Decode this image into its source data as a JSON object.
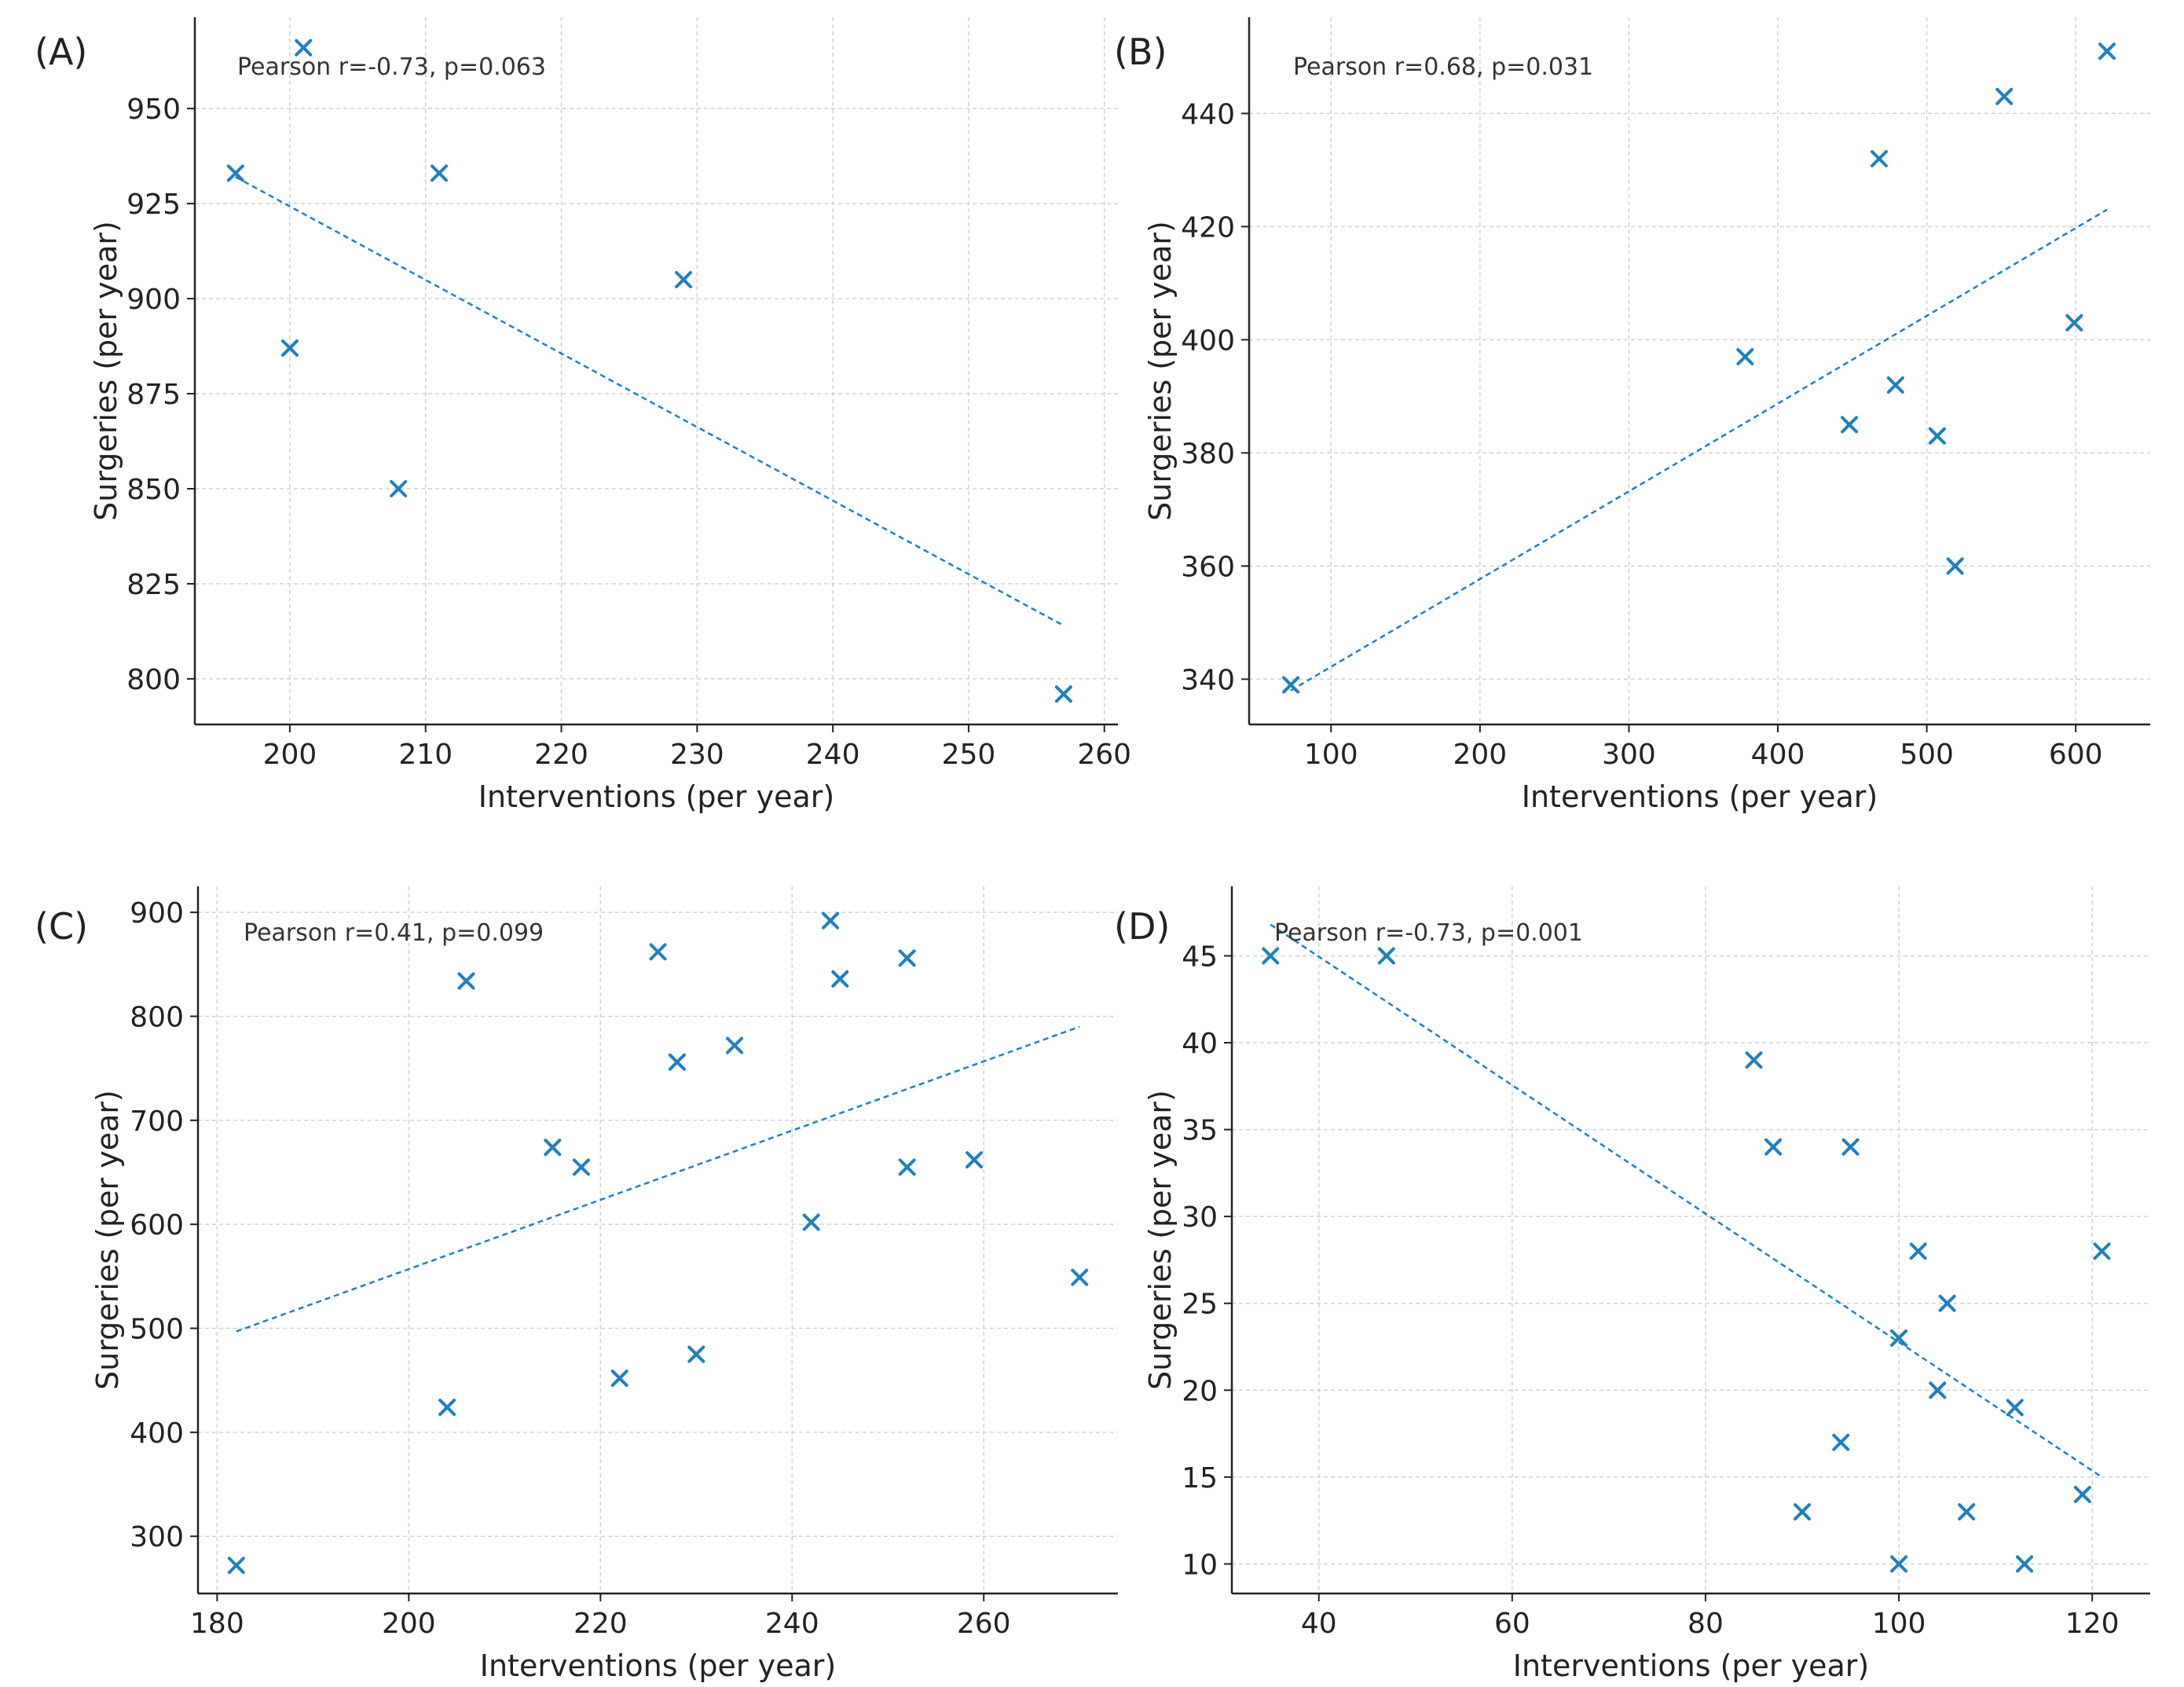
{
  "chart_data": [
    {
      "panel_label": "(A)",
      "type": "scatter",
      "annotation": "Pearson r=-0.73, p=0.063",
      "xlabel": "Interventions (per year)",
      "ylabel": "Surgeries (per year)",
      "xlim": [
        193,
        261
      ],
      "ylim": [
        788,
        974
      ],
      "xticks": [
        200,
        210,
        220,
        230,
        240,
        250,
        260
      ],
      "yticks": [
        800,
        825,
        850,
        875,
        900,
        925,
        950
      ],
      "grid": true,
      "points": [
        {
          "x": 196,
          "y": 933
        },
        {
          "x": 200,
          "y": 887
        },
        {
          "x": 201,
          "y": 966
        },
        {
          "x": 208,
          "y": 850
        },
        {
          "x": 211,
          "y": 933
        },
        {
          "x": 229,
          "y": 905
        },
        {
          "x": 257,
          "y": 796
        }
      ],
      "fit_line": {
        "x": [
          196,
          257
        ],
        "y": [
          932,
          814
        ]
      }
    },
    {
      "panel_label": "(B)",
      "type": "scatter",
      "annotation": "Pearson r=0.68, p=0.031",
      "xlabel": "Interventions (per year)",
      "ylabel": "Surgeries (per year)",
      "xlim": [
        45,
        650
      ],
      "ylim": [
        332,
        457
      ],
      "xticks": [
        100,
        200,
        300,
        400,
        500,
        600
      ],
      "yticks": [
        340,
        360,
        380,
        400,
        420,
        440
      ],
      "grid": true,
      "points": [
        {
          "x": 73,
          "y": 339
        },
        {
          "x": 378,
          "y": 397
        },
        {
          "x": 448,
          "y": 385
        },
        {
          "x": 468,
          "y": 432
        },
        {
          "x": 479,
          "y": 392
        },
        {
          "x": 507,
          "y": 383
        },
        {
          "x": 519,
          "y": 360
        },
        {
          "x": 552,
          "y": 443
        },
        {
          "x": 599,
          "y": 403
        },
        {
          "x": 621,
          "y": 451
        }
      ],
      "fit_line": {
        "x": [
          73,
          621
        ],
        "y": [
          338,
          423
        ]
      }
    },
    {
      "panel_label": "(C)",
      "type": "scatter",
      "annotation": "Pearson r=0.41, p=0.099",
      "xlabel": "Interventions (per year)",
      "ylabel": "Surgeries (per year)",
      "xlim": [
        178,
        274
      ],
      "ylim": [
        245,
        925
      ],
      "xticks": [
        180,
        200,
        220,
        240,
        260
      ],
      "yticks": [
        300,
        400,
        500,
        600,
        700,
        800,
        900
      ],
      "grid": true,
      "points": [
        {
          "x": 182,
          "y": 272
        },
        {
          "x": 204,
          "y": 424
        },
        {
          "x": 206,
          "y": 834
        },
        {
          "x": 215,
          "y": 674
        },
        {
          "x": 218,
          "y": 655
        },
        {
          "x": 222,
          "y": 452
        },
        {
          "x": 226,
          "y": 862
        },
        {
          "x": 228,
          "y": 756
        },
        {
          "x": 230,
          "y": 475
        },
        {
          "x": 234,
          "y": 772
        },
        {
          "x": 242,
          "y": 602
        },
        {
          "x": 244,
          "y": 892
        },
        {
          "x": 245,
          "y": 836
        },
        {
          "x": 252,
          "y": 655
        },
        {
          "x": 252,
          "y": 856
        },
        {
          "x": 259,
          "y": 662
        },
        {
          "x": 270,
          "y": 549
        }
      ],
      "fit_line": {
        "x": [
          182,
          270
        ],
        "y": [
          497,
          790
        ]
      }
    },
    {
      "panel_label": "(D)",
      "type": "scatter",
      "annotation": "Pearson r=-0.73, p=0.001",
      "xlabel": "Interventions (per year)",
      "ylabel": "Surgeries (per year)",
      "xlim": [
        31,
        126
      ],
      "ylim": [
        8.3,
        49
      ],
      "xticks": [
        40,
        60,
        80,
        100,
        120
      ],
      "yticks": [
        10,
        15,
        20,
        25,
        30,
        35,
        40,
        45
      ],
      "grid": true,
      "points": [
        {
          "x": 35,
          "y": 45
        },
        {
          "x": 47,
          "y": 45
        },
        {
          "x": 85,
          "y": 39
        },
        {
          "x": 87,
          "y": 34
        },
        {
          "x": 90,
          "y": 13
        },
        {
          "x": 94,
          "y": 17
        },
        {
          "x": 95,
          "y": 34
        },
        {
          "x": 100,
          "y": 23
        },
        {
          "x": 100,
          "y": 10
        },
        {
          "x": 102,
          "y": 28
        },
        {
          "x": 104,
          "y": 20
        },
        {
          "x": 105,
          "y": 25
        },
        {
          "x": 107,
          "y": 13
        },
        {
          "x": 112,
          "y": 19
        },
        {
          "x": 113,
          "y": 10
        },
        {
          "x": 119,
          "y": 14
        },
        {
          "x": 121,
          "y": 28
        }
      ],
      "fit_line": {
        "x": [
          35,
          121
        ],
        "y": [
          46.8,
          15
        ]
      }
    }
  ],
  "colors": {
    "marker": "#1f7fbf",
    "fit_line": "#1f7fbf",
    "grid": "#d0d0d0",
    "axis": "#222222",
    "text": "#222222",
    "annotation_text": "#333333"
  }
}
